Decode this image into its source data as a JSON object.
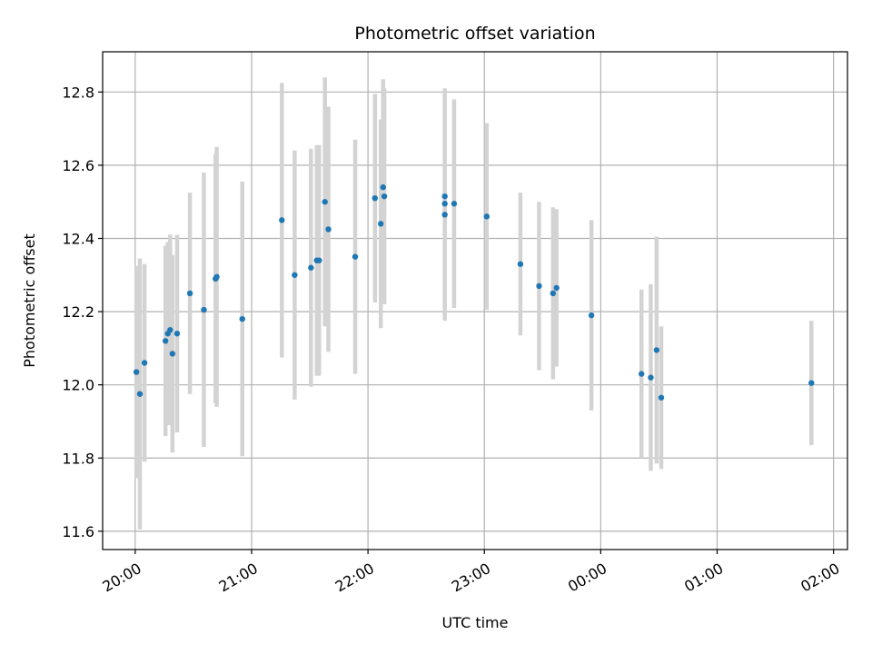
{
  "chart_data": {
    "type": "scatter",
    "title": "Photometric offset variation",
    "xlabel": "UTC time",
    "ylabel": "Photometric offset",
    "x_unit": "hours",
    "xlim": [
      19.72,
      26.12
    ],
    "ylim": [
      11.55,
      12.91
    ],
    "grid": true,
    "x_ticks": [
      {
        "value": 20.0,
        "label": "20:00"
      },
      {
        "value": 21.0,
        "label": "21:00"
      },
      {
        "value": 22.0,
        "label": "22:00"
      },
      {
        "value": 23.0,
        "label": "23:00"
      },
      {
        "value": 24.0,
        "label": "00:00"
      },
      {
        "value": 25.0,
        "label": "01:00"
      },
      {
        "value": 26.0,
        "label": "02:00"
      }
    ],
    "y_ticks": [
      {
        "value": 11.6,
        "label": "11.6"
      },
      {
        "value": 11.8,
        "label": "11.8"
      },
      {
        "value": 12.0,
        "label": "12.0"
      },
      {
        "value": 12.2,
        "label": "12.2"
      },
      {
        "value": 12.4,
        "label": "12.4"
      },
      {
        "value": 12.6,
        "label": "12.6"
      },
      {
        "value": 12.8,
        "label": "12.8"
      }
    ],
    "point_color": "#1f77b4",
    "errorbar_color": "#d3d3d3",
    "points": [
      {
        "x": 20.01,
        "y": 12.035,
        "err": 0.29
      },
      {
        "x": 20.04,
        "y": 11.975,
        "err": 0.37
      },
      {
        "x": 20.08,
        "y": 12.06,
        "err": 0.27
      },
      {
        "x": 20.26,
        "y": 12.12,
        "err": 0.26
      },
      {
        "x": 20.28,
        "y": 12.14,
        "err": 0.25
      },
      {
        "x": 20.3,
        "y": 12.15,
        "err": 0.26
      },
      {
        "x": 20.32,
        "y": 12.085,
        "err": 0.27
      },
      {
        "x": 20.36,
        "y": 12.14,
        "err": 0.27
      },
      {
        "x": 20.47,
        "y": 12.25,
        "err": 0.275
      },
      {
        "x": 20.59,
        "y": 12.205,
        "err": 0.375
      },
      {
        "x": 20.69,
        "y": 12.29,
        "err": 0.34
      },
      {
        "x": 20.7,
        "y": 12.295,
        "err": 0.355
      },
      {
        "x": 20.92,
        "y": 12.18,
        "err": 0.375
      },
      {
        "x": 21.26,
        "y": 12.45,
        "err": 0.375
      },
      {
        "x": 21.37,
        "y": 12.3,
        "err": 0.34
      },
      {
        "x": 21.51,
        "y": 12.32,
        "err": 0.325
      },
      {
        "x": 21.56,
        "y": 12.34,
        "err": 0.315
      },
      {
        "x": 21.58,
        "y": 12.34,
        "err": 0.315
      },
      {
        "x": 21.63,
        "y": 12.5,
        "err": 0.34
      },
      {
        "x": 21.66,
        "y": 12.425,
        "err": 0.335
      },
      {
        "x": 21.89,
        "y": 12.35,
        "err": 0.32
      },
      {
        "x": 22.06,
        "y": 12.51,
        "err": 0.285
      },
      {
        "x": 22.11,
        "y": 12.44,
        "err": 0.285
      },
      {
        "x": 22.13,
        "y": 12.54,
        "err": 0.295
      },
      {
        "x": 22.14,
        "y": 12.515,
        "err": 0.295
      },
      {
        "x": 22.66,
        "y": 12.515,
        "err": 0.295
      },
      {
        "x": 22.66,
        "y": 12.495,
        "err": 0.31
      },
      {
        "x": 22.66,
        "y": 12.465,
        "err": 0.29
      },
      {
        "x": 22.74,
        "y": 12.495,
        "err": 0.285
      },
      {
        "x": 23.02,
        "y": 12.46,
        "err": 0.255
      },
      {
        "x": 23.31,
        "y": 12.33,
        "err": 0.195
      },
      {
        "x": 23.47,
        "y": 12.27,
        "err": 0.23
      },
      {
        "x": 23.59,
        "y": 12.25,
        "err": 0.235
      },
      {
        "x": 23.62,
        "y": 12.265,
        "err": 0.215
      },
      {
        "x": 23.92,
        "y": 12.19,
        "err": 0.26
      },
      {
        "x": 24.35,
        "y": 12.03,
        "err": 0.23
      },
      {
        "x": 24.43,
        "y": 12.02,
        "err": 0.255
      },
      {
        "x": 24.48,
        "y": 12.095,
        "err": 0.31
      },
      {
        "x": 24.52,
        "y": 11.965,
        "err": 0.195
      },
      {
        "x": 25.81,
        "y": 12.005,
        "err": 0.17
      }
    ]
  }
}
